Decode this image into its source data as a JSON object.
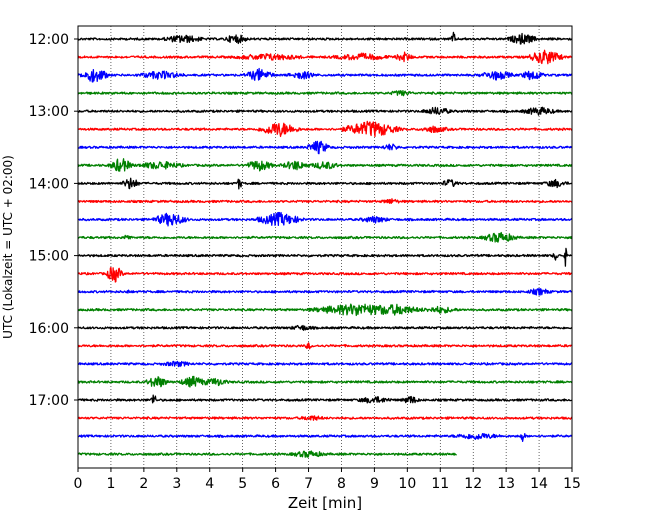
{
  "chart_data": {
    "type": "line",
    "title": "",
    "xlabel": "Zeit  [min]",
    "ylabel": "UTC (Lokalzeit = UTC + 02:00)",
    "xlim": [
      0,
      15
    ],
    "x_ticks": [
      "0",
      "1",
      "2",
      "3",
      "4",
      "5",
      "6",
      "7",
      "8",
      "9",
      "10",
      "11",
      "12",
      "13",
      "14",
      "15"
    ],
    "y_tick_labels": [
      "12:00",
      "13:00",
      "14:00",
      "15:00",
      "16:00",
      "17:00"
    ],
    "grid": "vertical dotted lines at each minute",
    "color_cycle": [
      "#000000",
      "#ff0000",
      "#0000ff",
      "#008000"
    ],
    "rows_per_hour": 4,
    "minutes_per_row": 15,
    "last_row_end_minute": 11.5,
    "series": [
      {
        "start": "12:00",
        "color": "#000000",
        "bursts": [
          [
            3.2,
            0.7,
            0.5
          ],
          [
            4.8,
            0.4,
            0.6
          ],
          [
            11.4,
            0.1,
            0.8
          ],
          [
            13.5,
            0.5,
            0.7
          ]
        ]
      },
      {
        "start": "12:15",
        "color": "#ff0000",
        "bursts": [
          [
            5.8,
            1.2,
            0.4
          ],
          [
            8.6,
            1.0,
            0.4
          ],
          [
            9.9,
            0.3,
            0.6
          ],
          [
            14.2,
            0.6,
            1.0
          ]
        ]
      },
      {
        "start": "12:30",
        "color": "#0000ff",
        "bursts": [
          [
            0.5,
            0.5,
            1.0
          ],
          [
            2.5,
            0.8,
            0.5
          ],
          [
            5.5,
            0.5,
            0.8
          ],
          [
            6.8,
            0.5,
            0.5
          ],
          [
            12.7,
            0.6,
            0.6
          ],
          [
            13.8,
            0.4,
            0.7
          ]
        ]
      },
      {
        "start": "12:45",
        "color": "#008000",
        "bursts": [
          [
            9.8,
            0.4,
            0.3
          ]
        ]
      },
      {
        "start": "13:00",
        "color": "#000000",
        "bursts": [
          [
            10.9,
            0.5,
            0.5
          ],
          [
            14.0,
            0.6,
            0.5
          ]
        ]
      },
      {
        "start": "13:15",
        "color": "#ff0000",
        "bursts": [
          [
            6.1,
            0.7,
            1.0
          ],
          [
            8.9,
            1.0,
            1.1
          ],
          [
            10.8,
            0.5,
            0.4
          ]
        ]
      },
      {
        "start": "13:30",
        "color": "#0000ff",
        "bursts": [
          [
            7.3,
            0.4,
            0.9
          ],
          [
            9.5,
            0.3,
            0.4
          ]
        ]
      },
      {
        "start": "13:45",
        "color": "#008000",
        "bursts": [
          [
            1.3,
            0.4,
            1.0
          ],
          [
            2.5,
            0.8,
            0.5
          ],
          [
            5.5,
            0.5,
            0.7
          ],
          [
            6.6,
            0.5,
            0.6
          ],
          [
            7.5,
            0.5,
            0.5
          ]
        ]
      },
      {
        "start": "14:00",
        "color": "#000000",
        "bursts": [
          [
            1.6,
            0.3,
            0.8
          ],
          [
            4.9,
            0.1,
            0.8
          ],
          [
            11.3,
            0.3,
            0.5
          ],
          [
            14.5,
            0.4,
            0.5
          ]
        ]
      },
      {
        "start": "14:15",
        "color": "#ff0000",
        "bursts": [
          [
            9.5,
            0.3,
            0.3
          ]
        ]
      },
      {
        "start": "14:30",
        "color": "#0000ff",
        "bursts": [
          [
            2.8,
            0.6,
            0.9
          ],
          [
            6.1,
            0.8,
            0.9
          ],
          [
            9.0,
            0.5,
            0.4
          ]
        ]
      },
      {
        "start": "14:45",
        "color": "#008000",
        "bursts": [
          [
            1.5,
            0.1,
            0.6
          ],
          [
            12.8,
            0.6,
            0.7
          ]
        ]
      },
      {
        "start": "15:00",
        "color": "#000000",
        "bursts": [
          [
            14.5,
            0.1,
            0.6
          ],
          [
            14.8,
            0.05,
            1.4
          ]
        ]
      },
      {
        "start": "15:15",
        "color": "#ff0000",
        "bursts": [
          [
            1.1,
            0.3,
            1.2
          ]
        ]
      },
      {
        "start": "15:30",
        "color": "#0000ff",
        "bursts": [
          [
            1.5,
            0.05,
            0.6
          ],
          [
            14.0,
            0.4,
            0.4
          ]
        ]
      },
      {
        "start": "15:45",
        "color": "#008000",
        "bursts": [
          [
            8.5,
            1.6,
            0.8
          ],
          [
            9.8,
            0.8,
            0.5
          ],
          [
            11.0,
            0.6,
            0.4
          ]
        ]
      },
      {
        "start": "16:00",
        "color": "#000000",
        "bursts": [
          [
            6.8,
            0.4,
            0.3
          ]
        ]
      },
      {
        "start": "16:15",
        "color": "#ff0000",
        "bursts": [
          [
            7.0,
            0.1,
            0.5
          ]
        ]
      },
      {
        "start": "16:30",
        "color": "#0000ff",
        "bursts": [
          [
            3.0,
            0.5,
            0.3
          ]
        ]
      },
      {
        "start": "16:45",
        "color": "#008000",
        "bursts": [
          [
            2.4,
            0.4,
            0.8
          ],
          [
            3.5,
            0.5,
            0.7
          ],
          [
            4.2,
            0.4,
            0.5
          ]
        ]
      },
      {
        "start": "17:00",
        "color": "#000000",
        "bursts": [
          [
            2.3,
            0.1,
            1.0
          ],
          [
            9.0,
            0.6,
            0.4
          ],
          [
            10.1,
            0.3,
            0.5
          ]
        ]
      },
      {
        "start": "17:15",
        "color": "#ff0000",
        "bursts": [
          [
            7.1,
            0.4,
            0.3
          ]
        ]
      },
      {
        "start": "17:30",
        "color": "#0000ff",
        "bursts": [
          [
            12.1,
            0.8,
            0.4
          ],
          [
            13.5,
            0.1,
            0.7
          ]
        ]
      },
      {
        "start": "17:45",
        "color": "#008000",
        "bursts": [
          [
            7.0,
            0.6,
            0.4
          ]
        ]
      }
    ]
  }
}
